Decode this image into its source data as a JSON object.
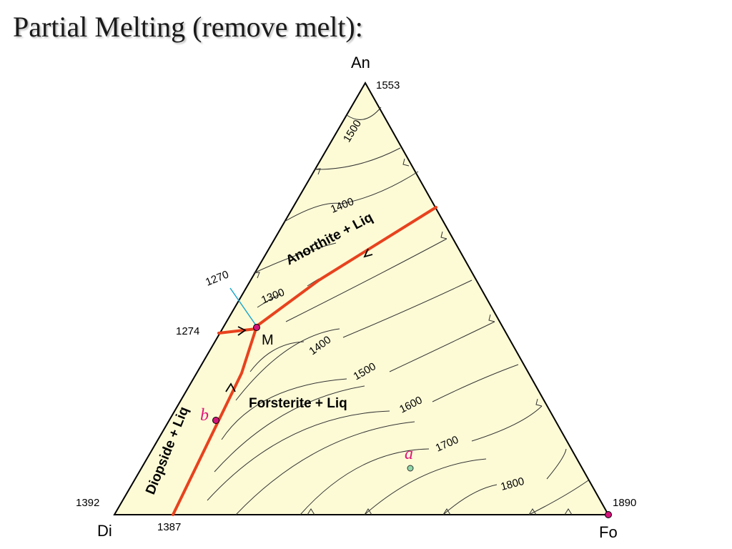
{
  "title": "Partial Melting (remove melt):",
  "vertices": {
    "top": "An",
    "left": "Di",
    "right": "Fo"
  },
  "vertex_temps": {
    "an": "1553",
    "di_left": "1392",
    "di_bottom": "1387",
    "fo": "1890"
  },
  "edge_temps": {
    "left_upper": "1270",
    "left_lower": "1274"
  },
  "isotherms": {
    "an_1500": "1500",
    "an_1400": "1400",
    "m_1300": "1300",
    "fo_1400": "1400",
    "fo_1500": "1500",
    "fo_1600": "1600",
    "fo_1700": "1700",
    "fo_1800": "1800"
  },
  "fields": {
    "anorthite": "Anorthite + Liq",
    "forsterite": "Forsterite + Liq",
    "diopside": "Diopside + Liq"
  },
  "points": {
    "eutectic": "M",
    "a": "a",
    "b": "b"
  },
  "colors": {
    "background": "#fdfbd6",
    "cotectic": "#e8421e",
    "isotherm": "#333333",
    "tie_line": "#1ba6c9",
    "point": "#d4147a",
    "point_a": "#8fd6a8"
  }
}
